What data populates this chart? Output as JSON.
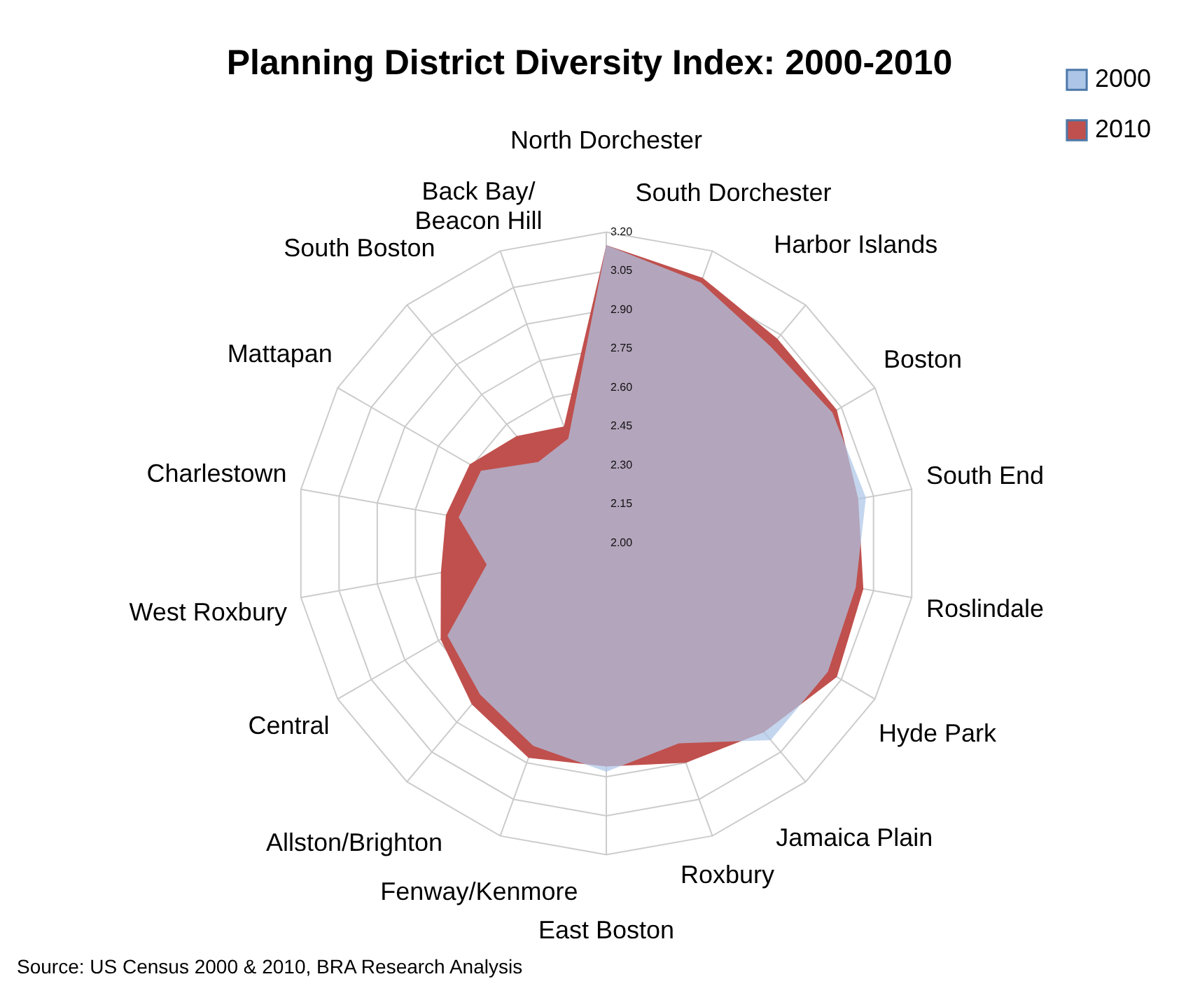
{
  "chart_data": {
    "type": "radar",
    "title": "Planning District Diversity Index: 2000-2010",
    "categories": [
      "North Dorchester",
      "South Dorchester",
      "Harbor Islands",
      "Boston",
      "South End",
      "Roslindale",
      "Hyde Park",
      "Jamaica Plain",
      "Roxbury",
      "East Boston",
      "Fenway/Kenmore",
      "Allston/Brighton",
      "Central",
      "West Roxbury",
      "Charlestown",
      "Mattapan",
      "South Boston",
      "Back Bay/\nBeacon Hill"
    ],
    "series": [
      {
        "name": "2010",
        "color": "#c0504d",
        "values": [
          3.15,
          3.09,
          3.03,
          3.03,
          2.99,
          3.01,
          3.03,
          2.95,
          2.9,
          2.86,
          2.88,
          2.81,
          2.74,
          2.65,
          2.63,
          2.61,
          2.54,
          2.48
        ]
      },
      {
        "name": "2000",
        "color": "#adc6e8",
        "values": [
          3.15,
          3.07,
          2.99,
          3.01,
          3.02,
          2.98,
          2.99,
          2.99,
          2.82,
          2.88,
          2.83,
          2.76,
          2.71,
          2.47,
          2.58,
          2.56,
          2.41,
          2.43
        ]
      }
    ],
    "ylim": [
      2,
      3.2
    ],
    "yticks": [
      {
        "value": 2,
        "label": "2.00"
      },
      2.15,
      {
        "value": 2.3,
        "label": "2.30"
      },
      2.45,
      {
        "value": 2.6,
        "label": "2.60"
      },
      2.75,
      {
        "value": 2.9,
        "label": "2.90"
      },
      3.05,
      {
        "value": 3.2,
        "label": "3.20"
      }
    ],
    "grid": true,
    "legend": "top right",
    "annotations": [
      "Source: US Census 2000 & 2010, BRA Research Analysis"
    ]
  }
}
